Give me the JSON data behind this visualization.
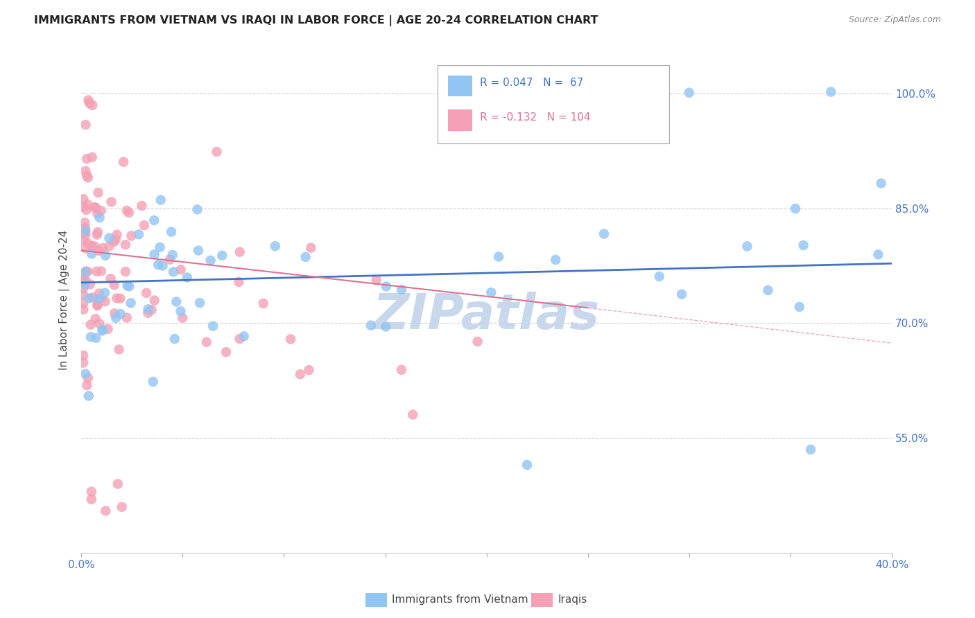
{
  "title": "IMMIGRANTS FROM VIETNAM VS IRAQI IN LABOR FORCE | AGE 20-24 CORRELATION CHART",
  "source": "Source: ZipAtlas.com",
  "ylabel": "In Labor Force | Age 20-24",
  "legend_blue_r": "R = 0.047",
  "legend_blue_n": "N =  67",
  "legend_pink_r": "R = -0.132",
  "legend_pink_n": "N = 104",
  "legend_blue_label": "Immigrants from Vietnam",
  "legend_pink_label": "Iraqis",
  "xlim": [
    0.0,
    0.4
  ],
  "ylim": [
    0.4,
    1.06
  ],
  "background_color": "#ffffff",
  "grid_color": "#cccccc",
  "blue_color": "#92C5F2",
  "pink_color": "#F4A0B5",
  "blue_line_color": "#4472C4",
  "pink_line_color": "#E07090",
  "title_color": "#222222",
  "axis_label_color": "#4472C4",
  "watermark_color": "#C8D8EC",
  "ytick_positions": [
    0.55,
    0.7,
    0.85,
    1.0
  ],
  "ytick_labels": [
    "55.0%",
    "70.0%",
    "85.0%",
    "100.0%"
  ],
  "blue_trend_x": [
    0.0,
    0.4
  ],
  "blue_trend_y": [
    0.753,
    0.778
  ],
  "pink_trend_x": [
    0.0,
    0.25
  ],
  "pink_trend_y": [
    0.795,
    0.72
  ]
}
